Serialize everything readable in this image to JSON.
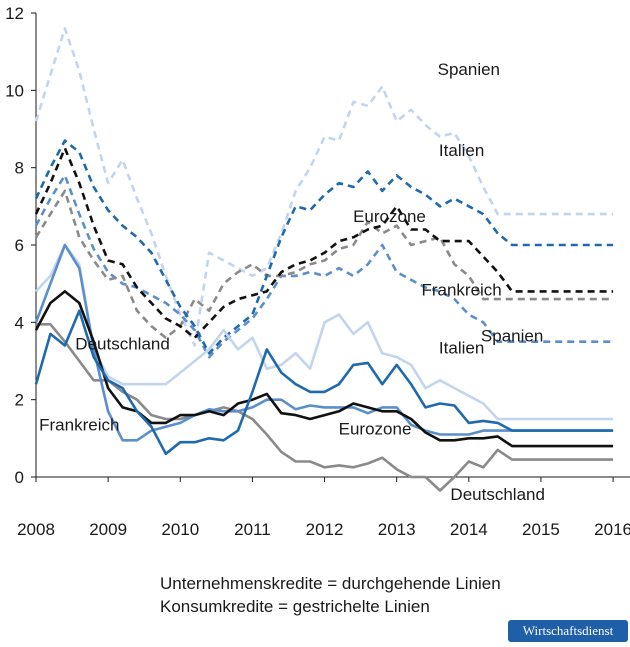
{
  "chart_data": {
    "type": "line",
    "title": "",
    "xlabel": "",
    "ylabel": "",
    "xlim": [
      2008,
      2016.2
    ],
    "ylim": [
      -0.3,
      12
    ],
    "x_ticks": [
      2008,
      2009,
      2010,
      2011,
      2012,
      2013,
      2014,
      2015,
      2016
    ],
    "y_ticks": [
      0,
      2,
      4,
      6,
      8,
      10,
      12
    ],
    "grid": false,
    "legend": "inline labels",
    "notes": [
      "Unternehmenskredite = durchgehende Linien",
      "Konsumkredite = gestrichelte Linien"
    ],
    "x": [
      2008.0,
      2008.2,
      2008.4,
      2008.6,
      2008.8,
      2009.0,
      2009.2,
      2009.4,
      2009.6,
      2009.8,
      2010.0,
      2010.2,
      2010.4,
      2010.6,
      2010.8,
      2011.0,
      2011.2,
      2011.4,
      2011.6,
      2011.8,
      2012.0,
      2012.2,
      2012.4,
      2012.6,
      2012.8,
      2013.0,
      2013.2,
      2013.4,
      2013.6,
      2013.8,
      2014.0,
      2014.2,
      2014.4,
      2014.6,
      2014.8,
      2015.0,
      2015.2,
      2015.4,
      2015.6,
      2015.8,
      2016.0
    ],
    "series": [
      {
        "name": "Spanien",
        "line": "dashed",
        "color": "#c3d5ec",
        "values": [
          9.2,
          10.4,
          11.6,
          10.5,
          9.0,
          7.6,
          8.2,
          7.2,
          6.3,
          5.2,
          4.2,
          3.4,
          5.8,
          5.6,
          5.4,
          5.2,
          5.4,
          6.3,
          7.4,
          8.0,
          8.8,
          8.7,
          9.7,
          9.6,
          10.1,
          9.2,
          9.5,
          9.1,
          8.8,
          8.9,
          8.3,
          7.5,
          6.8,
          6.8,
          6.8,
          6.8,
          6.8,
          6.8,
          6.8,
          6.8,
          6.8
        ]
      },
      {
        "name": "Italien",
        "line": "dashed",
        "color": "#1f6aad",
        "values": [
          7.2,
          8.0,
          8.7,
          8.4,
          7.5,
          6.9,
          6.5,
          6.2,
          5.8,
          5.1,
          4.4,
          3.9,
          3.2,
          3.6,
          3.9,
          4.2,
          5.2,
          6.2,
          7.0,
          6.9,
          7.3,
          7.6,
          7.5,
          7.9,
          7.4,
          7.8,
          7.5,
          7.3,
          7.0,
          7.2,
          7.0,
          6.8,
          6.3,
          6.0,
          6.0,
          6.0,
          6.0,
          6.0,
          6.0,
          6.0,
          6.0
        ]
      },
      {
        "name": "Eurozone",
        "line": "dashed",
        "color": "#111111",
        "values": [
          6.8,
          7.6,
          8.5,
          7.6,
          6.5,
          5.6,
          5.5,
          4.9,
          4.5,
          4.1,
          3.9,
          3.6,
          4.0,
          4.4,
          4.6,
          4.7,
          4.8,
          5.3,
          5.5,
          5.6,
          5.8,
          6.1,
          6.2,
          6.4,
          6.5,
          7.0,
          6.4,
          6.4,
          6.1,
          6.1,
          6.1,
          5.7,
          5.3,
          4.8,
          4.8,
          4.8,
          4.8,
          4.8,
          4.8,
          4.8,
          4.8
        ]
      },
      {
        "name": "Frankreich",
        "line": "dashed",
        "color": "#5b8fcc",
        "values": [
          6.5,
          7.2,
          7.8,
          6.8,
          5.9,
          5.3,
          5.0,
          4.9,
          4.7,
          4.5,
          4.2,
          3.8,
          3.1,
          3.5,
          3.8,
          4.1,
          4.6,
          5.2,
          5.2,
          5.3,
          5.2,
          5.4,
          5.2,
          5.5,
          6.0,
          5.3,
          5.1,
          4.9,
          4.8,
          4.6,
          4.2,
          4.0,
          3.5,
          3.5,
          3.5,
          3.5,
          3.5,
          3.5,
          3.5,
          3.5,
          3.5
        ]
      },
      {
        "name": "Deutschland",
        "line": "dashed",
        "color": "#8a8a8a",
        "values": [
          6.2,
          6.8,
          7.4,
          6.2,
          5.6,
          5.1,
          5.2,
          4.3,
          3.9,
          3.6,
          3.9,
          4.6,
          4.3,
          5.0,
          5.3,
          5.5,
          5.2,
          5.2,
          5.3,
          5.5,
          5.6,
          5.9,
          6.0,
          6.6,
          6.3,
          6.5,
          6.0,
          6.1,
          6.2,
          5.5,
          5.2,
          4.6,
          4.6,
          4.6,
          4.6,
          4.6,
          4.6,
          4.6,
          4.6,
          4.6,
          4.6
        ]
      },
      {
        "name": "Spanien",
        "line": "solid",
        "color": "#c3d5ec",
        "values": [
          4.8,
          5.2,
          6.0,
          5.5,
          3.3,
          2.6,
          2.4,
          2.4,
          2.4,
          2.4,
          2.7,
          3.0,
          3.3,
          3.8,
          3.3,
          3.6,
          2.8,
          2.9,
          3.2,
          2.8,
          4.0,
          4.2,
          3.7,
          4.0,
          3.2,
          3.1,
          2.9,
          2.3,
          2.5,
          2.3,
          2.1,
          1.9,
          1.5,
          1.5,
          1.5,
          1.5,
          1.5,
          1.5,
          1.5,
          1.5,
          1.5
        ]
      },
      {
        "name": "Italien",
        "line": "solid",
        "color": "#1f6aad",
        "values": [
          2.4,
          3.7,
          3.4,
          4.3,
          3.1,
          2.5,
          2.3,
          1.7,
          1.3,
          0.6,
          0.9,
          0.9,
          1.0,
          0.95,
          1.2,
          2.2,
          3.3,
          2.7,
          2.4,
          2.2,
          2.2,
          2.4,
          2.9,
          2.95,
          2.4,
          2.9,
          2.4,
          1.8,
          1.9,
          1.85,
          1.4,
          1.45,
          1.4,
          1.2,
          1.2,
          1.2,
          1.2,
          1.2,
          1.2,
          1.2,
          1.2
        ]
      },
      {
        "name": "Eurozone",
        "line": "solid",
        "color": "#111111",
        "values": [
          3.8,
          4.5,
          4.8,
          4.5,
          3.5,
          2.3,
          1.8,
          1.7,
          1.4,
          1.4,
          1.6,
          1.6,
          1.7,
          1.6,
          1.9,
          2.0,
          2.15,
          1.65,
          1.6,
          1.5,
          1.6,
          1.7,
          1.9,
          1.8,
          1.7,
          1.7,
          1.5,
          1.15,
          0.95,
          0.95,
          1.0,
          1.0,
          1.05,
          0.8,
          0.8,
          0.8,
          0.8,
          0.8,
          0.8,
          0.8,
          0.8
        ]
      },
      {
        "name": "Frankreich",
        "line": "solid",
        "color": "#5b8fcc",
        "values": [
          4.0,
          5.0,
          6.0,
          5.4,
          3.3,
          1.7,
          0.95,
          0.95,
          1.2,
          1.3,
          1.4,
          1.6,
          1.75,
          1.7,
          1.7,
          1.8,
          2.0,
          2.0,
          1.75,
          1.85,
          1.8,
          1.8,
          1.8,
          1.65,
          1.8,
          1.8,
          1.35,
          1.2,
          1.1,
          1.1,
          1.1,
          1.2,
          1.2,
          1.2,
          1.2,
          1.2,
          1.2,
          1.2,
          1.2,
          1.2,
          1.2
        ]
      },
      {
        "name": "Deutschland",
        "line": "solid",
        "color": "#8a8a8a",
        "values": [
          3.95,
          3.95,
          3.5,
          3.0,
          2.5,
          2.5,
          2.2,
          2.0,
          1.6,
          1.5,
          1.5,
          1.6,
          1.7,
          1.8,
          1.7,
          1.5,
          1.1,
          0.65,
          0.4,
          0.4,
          0.25,
          0.3,
          0.25,
          0.35,
          0.5,
          0.2,
          0.0,
          0.0,
          -0.35,
          0.0,
          0.4,
          0.25,
          0.7,
          0.45,
          0.45,
          0.45,
          0.45,
          0.45,
          0.45,
          0.45,
          0.45
        ]
      }
    ],
    "labels": [
      {
        "text": "Spanien",
        "x": 2014.0,
        "y": 10.4
      },
      {
        "text": "Italien",
        "x": 2013.9,
        "y": 8.3
      },
      {
        "text": "Eurozone",
        "x": 2012.9,
        "y": 6.6
      },
      {
        "text": "Frankreich",
        "x": 2013.9,
        "y": 4.7
      },
      {
        "text": "Deutschland",
        "x": 2009.2,
        "y": 3.3
      },
      {
        "text": "Spanien",
        "x": 2014.6,
        "y": 3.5
      },
      {
        "text": "Italien",
        "x": 2013.9,
        "y": 3.2
      },
      {
        "text": "Eurozone",
        "x": 2012.7,
        "y": 1.1
      },
      {
        "text": "Frankreich",
        "x": 2008.6,
        "y": 1.2
      },
      {
        "text": "Deutschland",
        "x": 2014.4,
        "y": -0.6
      }
    ]
  },
  "notes": {
    "line1": "Unternehmenskredite = durchgehende Linien",
    "line2": "Konsumkredite = gestrichelte Linien"
  },
  "brand": "Wirtschaftsdienst"
}
